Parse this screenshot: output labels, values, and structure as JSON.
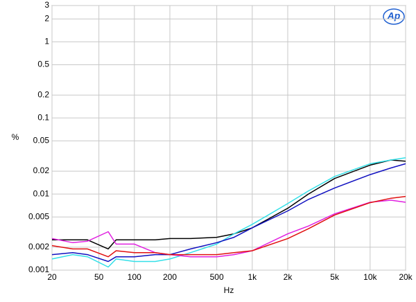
{
  "chart_data": {
    "type": "line",
    "logo": "Ap",
    "xlabel": "Hz",
    "ylabel": "%",
    "xscale": "log",
    "yscale": "log",
    "grid": true,
    "xlim": [
      20,
      20000
    ],
    "ylim": [
      0.001,
      3
    ],
    "xticks": [
      20,
      50,
      100,
      200,
      500,
      {
        "value": 1000,
        "label": "1k"
      },
      {
        "value": 2000,
        "label": "2k"
      },
      {
        "value": 5000,
        "label": "5k"
      },
      {
        "value": 10000,
        "label": "10k"
      },
      {
        "value": 20000,
        "label": "20k"
      }
    ],
    "yticks": [
      3,
      2,
      1,
      0.5,
      0.2,
      0.1,
      0.05,
      0.02,
      0.01,
      0.005,
      0.002,
      0.001
    ],
    "x": [
      20,
      30,
      40,
      60,
      70,
      100,
      150,
      200,
      300,
      500,
      700,
      1000,
      2000,
      3000,
      5000,
      10000,
      15000,
      20000
    ],
    "series": [
      {
        "color": "#000000",
        "values": [
          0.0025,
          0.0025,
          0.0025,
          0.0019,
          0.0025,
          0.0025,
          0.0025,
          0.0026,
          0.0026,
          0.0027,
          0.003,
          0.0036,
          0.0065,
          0.01,
          0.016,
          0.024,
          0.028,
          0.027
        ]
      },
      {
        "color": "#33e0e8",
        "values": [
          0.0014,
          0.0016,
          0.0015,
          0.0011,
          0.0014,
          0.0013,
          0.0013,
          0.0014,
          0.0017,
          0.0022,
          0.003,
          0.004,
          0.0075,
          0.011,
          0.017,
          0.025,
          0.028,
          0.03
        ]
      },
      {
        "color": "#1010c0",
        "values": [
          0.0016,
          0.0017,
          0.0016,
          0.0013,
          0.0015,
          0.0015,
          0.0016,
          0.0016,
          0.0019,
          0.0023,
          0.0027,
          0.0036,
          0.006,
          0.0085,
          0.012,
          0.018,
          0.022,
          0.025
        ]
      },
      {
        "color": "#e020e0",
        "values": [
          0.0026,
          0.0023,
          0.0024,
          0.0032,
          0.0022,
          0.0022,
          0.0017,
          0.0016,
          0.0015,
          0.0015,
          0.0016,
          0.0018,
          0.003,
          0.0038,
          0.0055,
          0.0078,
          0.0083,
          0.0078
        ]
      },
      {
        "color": "#e01010",
        "values": [
          0.0021,
          0.0019,
          0.0019,
          0.0015,
          0.0018,
          0.0017,
          0.0017,
          0.0016,
          0.0016,
          0.0016,
          0.0017,
          0.0018,
          0.0026,
          0.0035,
          0.0053,
          0.0077,
          0.0088,
          0.0093
        ]
      }
    ]
  }
}
